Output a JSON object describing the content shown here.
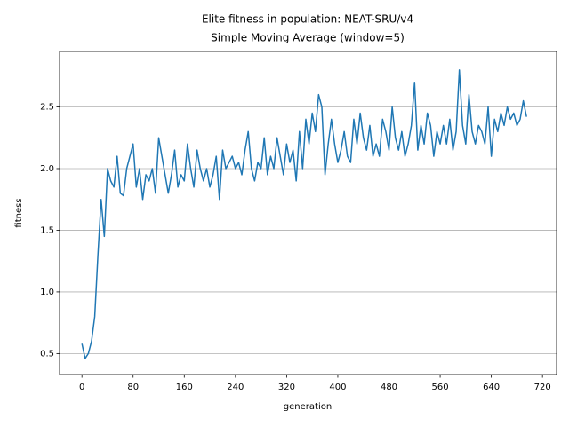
{
  "chart_data": {
    "type": "line",
    "title": "Elite fitness in population: NEAT-SRU/v4",
    "subtitle": "Simple Moving Average (window=5)",
    "x_label": "generation",
    "y_label": "fitness",
    "x": [
      0,
      5,
      10,
      15,
      20,
      25,
      30,
      35,
      40,
      45,
      50,
      55,
      60,
      65,
      70,
      75,
      80,
      85,
      90,
      95,
      100,
      105,
      110,
      115,
      120,
      125,
      130,
      135,
      140,
      145,
      150,
      155,
      160,
      165,
      170,
      175,
      180,
      185,
      190,
      195,
      200,
      205,
      210,
      215,
      220,
      225,
      230,
      235,
      240,
      245,
      250,
      255,
      260,
      265,
      270,
      275,
      280,
      285,
      290,
      295,
      300,
      305,
      310,
      315,
      320,
      325,
      330,
      335,
      340,
      345,
      350,
      355,
      360,
      365,
      370,
      375,
      380,
      385,
      390,
      395,
      400,
      405,
      410,
      415,
      420,
      425,
      430,
      435,
      440,
      445,
      450,
      455,
      460,
      465,
      470,
      475,
      480,
      485,
      490,
      495,
      500,
      505,
      510,
      515,
      520,
      525,
      530,
      535,
      540,
      545,
      550,
      555,
      560,
      565,
      570,
      575,
      580,
      585,
      590,
      595,
      600,
      605,
      610,
      615,
      620,
      625,
      630,
      635,
      640,
      645,
      650,
      655,
      660,
      665,
      670,
      675,
      680,
      685,
      690,
      695
    ],
    "series": [
      {
        "color": "#1f77b4",
        "values": [
          0.58,
          0.46,
          0.5,
          0.6,
          0.8,
          1.3,
          1.75,
          1.45,
          2.0,
          1.9,
          1.85,
          2.1,
          1.8,
          1.78,
          2.0,
          2.1,
          2.2,
          1.85,
          2.0,
          1.75,
          1.95,
          1.9,
          2.0,
          1.8,
          2.25,
          2.1,
          1.95,
          1.8,
          1.95,
          2.15,
          1.85,
          1.95,
          1.9,
          2.2,
          2.0,
          1.85,
          2.15,
          2.0,
          1.9,
          2.0,
          1.85,
          1.95,
          2.1,
          1.75,
          2.15,
          2.0,
          2.05,
          2.1,
          2.0,
          2.05,
          1.95,
          2.15,
          2.3,
          2.0,
          1.9,
          2.05,
          2.0,
          2.25,
          1.95,
          2.1,
          2.0,
          2.25,
          2.1,
          1.95,
          2.2,
          2.05,
          2.15,
          1.9,
          2.3,
          2.0,
          2.4,
          2.2,
          2.45,
          2.3,
          2.6,
          2.5,
          1.95,
          2.2,
          2.4,
          2.2,
          2.05,
          2.15,
          2.3,
          2.1,
          2.05,
          2.4,
          2.2,
          2.45,
          2.25,
          2.15,
          2.35,
          2.1,
          2.2,
          2.1,
          2.4,
          2.3,
          2.15,
          2.5,
          2.25,
          2.15,
          2.3,
          2.1,
          2.2,
          2.35,
          2.7,
          2.15,
          2.35,
          2.2,
          2.45,
          2.35,
          2.1,
          2.3,
          2.2,
          2.35,
          2.2,
          2.4,
          2.15,
          2.3,
          2.8,
          2.35,
          2.2,
          2.6,
          2.3,
          2.2,
          2.35,
          2.3,
          2.2,
          2.5,
          2.1,
          2.4,
          2.3,
          2.45,
          2.35,
          2.5,
          2.4,
          2.45,
          2.35,
          2.4,
          2.55,
          2.42
        ]
      }
    ],
    "xlim": [
      -35,
      742
    ],
    "ylim": [
      0.33,
      2.95
    ],
    "xticks": [
      0,
      80,
      160,
      240,
      320,
      400,
      480,
      560,
      640,
      720
    ],
    "yticks": [
      0.5,
      {
        "value": 1,
        "label": "1.0"
      },
      1.5,
      {
        "value": 2,
        "label": "2.0"
      },
      2.5
    ],
    "grid": "y"
  }
}
